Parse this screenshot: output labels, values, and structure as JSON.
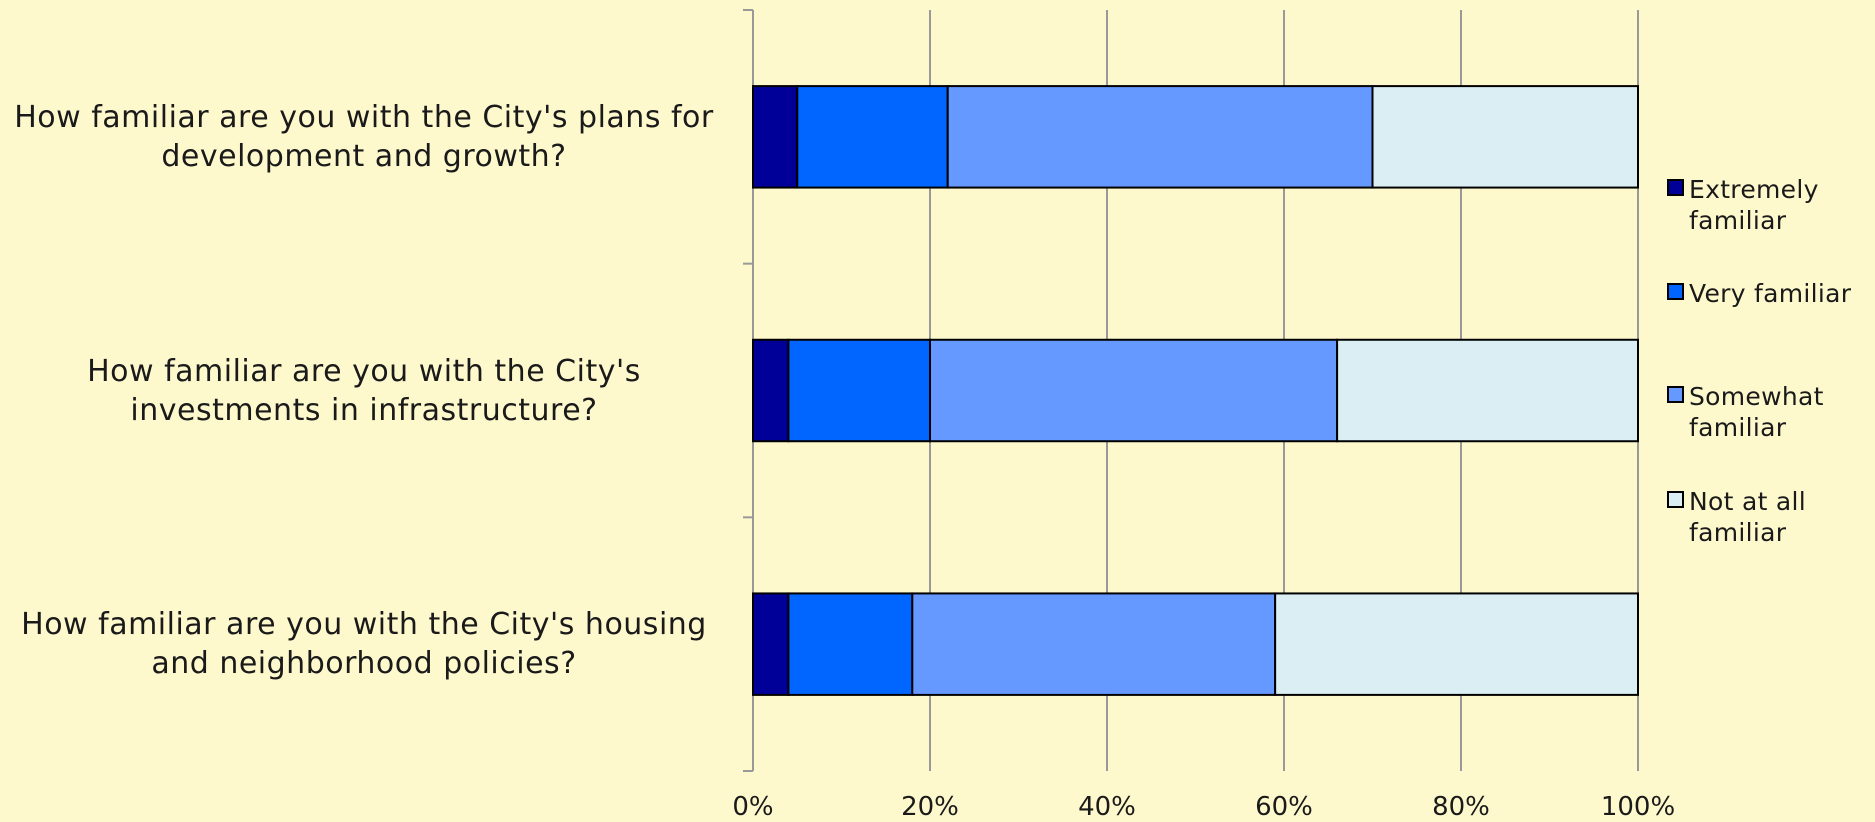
{
  "chart_data": {
    "type": "stacked-barh",
    "categories": [
      "How familiar are you with the City's plans for development and growth?",
      "How familiar are you with the City's investments in infrastructure?",
      "How familiar are you with the City's housing and neighborhood policies?"
    ],
    "series": [
      {
        "name": "Extremely familiar",
        "color": "#000099",
        "values": [
          5,
          4,
          4
        ]
      },
      {
        "name": "Very familiar",
        "color": "#0066ff",
        "values": [
          17,
          16,
          14
        ]
      },
      {
        "name": "Somewhat familiar",
        "color": "#6699ff",
        "values": [
          48,
          46,
          41
        ]
      },
      {
        "name": "Not at all familiar",
        "color": "#daeef3",
        "values": [
          30,
          34,
          41
        ]
      }
    ],
    "xlim": [
      0,
      100
    ],
    "xticks": [
      {
        "value": 0,
        "label": "0%"
      },
      {
        "value": 20,
        "label": "20%"
      },
      {
        "value": 40,
        "label": "40%"
      },
      {
        "value": 60,
        "label": "60%"
      },
      {
        "value": 80,
        "label": "80%"
      },
      {
        "value": 100,
        "label": "100%"
      }
    ],
    "grid": true,
    "legend": "right"
  }
}
